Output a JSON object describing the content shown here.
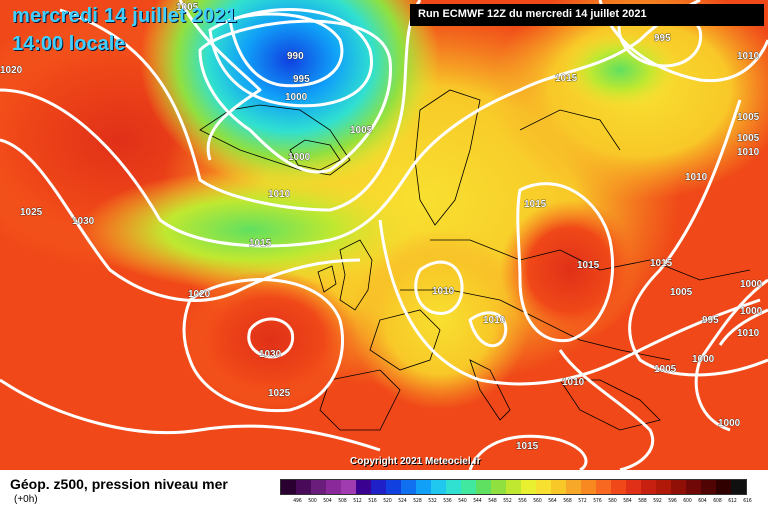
{
  "title": {
    "date": "mercredi 14 juillet 2021",
    "time": "14:00 locale"
  },
  "run_info": "Run ECMWF 12Z du mercredi 14 juillet 2021",
  "copyright": "Copyright 2021 Meteociel.fr",
  "legend": {
    "label": "Géop. z500, pression niveau mer",
    "sub": "(+0h)",
    "ticks": [
      "496",
      "500",
      "504",
      "508",
      "512",
      "516",
      "520",
      "524",
      "528",
      "532",
      "536",
      "540",
      "544",
      "548",
      "552",
      "556",
      "560",
      "564",
      "568",
      "572",
      "576",
      "580",
      "584",
      "588",
      "592",
      "596",
      "600",
      "604",
      "608",
      "612",
      "616"
    ],
    "colors": [
      "#2a0030",
      "#4a0a5a",
      "#6a1d7a",
      "#8a2a9a",
      "#a03cb0",
      "#3a0090",
      "#2020c8",
      "#1040e0",
      "#1070f0",
      "#10a0f8",
      "#20c8f0",
      "#30e0d0",
      "#40e8a0",
      "#60e060",
      "#90e040",
      "#c0e830",
      "#e8f030",
      "#f8e030",
      "#f8c828",
      "#f8a828",
      "#f88820",
      "#f86820",
      "#f04818",
      "#e03018",
      "#c82010",
      "#b01808",
      "#901008",
      "#700808",
      "#500404",
      "#300000",
      "#101010"
    ]
  },
  "isobars": [
    "1005",
    "990",
    "995",
    "1000",
    "1005",
    "1000",
    "995",
    "1015",
    "1010",
    "1005",
    "1005",
    "1010",
    "1010",
    "1010",
    "1015",
    "1015",
    "1015",
    "1025",
    "1030",
    "1020",
    "1015",
    "1010",
    "1030",
    "1025",
    "1015",
    "1010",
    "1020",
    "1005",
    "1000",
    "1000",
    "995",
    "1000",
    "1005",
    "1010",
    "1000",
    "1010",
    "1015"
  ]
}
